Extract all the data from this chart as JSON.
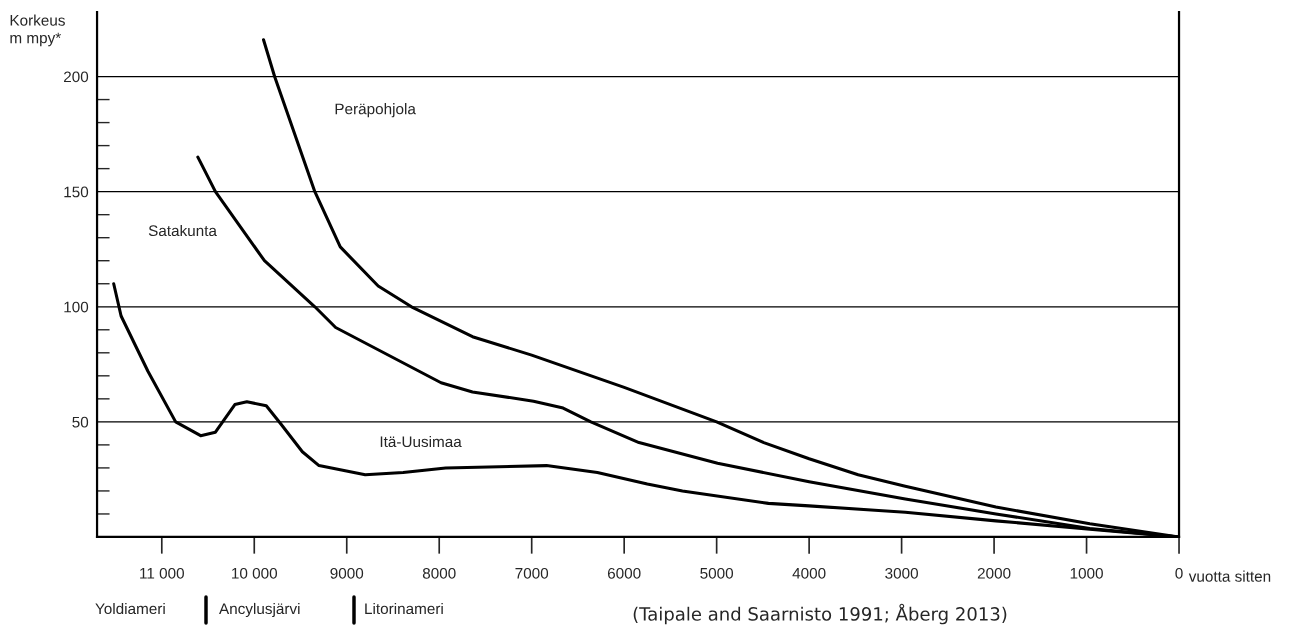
{
  "chart_data": {
    "type": "line",
    "xlabel": "vuotta sitten",
    "ylabel": "Korkeus\nm mpy*",
    "xlim": [
      11700,
      0
    ],
    "ylim": [
      0,
      228
    ],
    "xticks": [
      {
        "value": 11000,
        "label": "11 000"
      },
      {
        "value": 10000,
        "label": "10 000"
      },
      9000,
      8000,
      7000,
      6000,
      5000,
      4000,
      3000,
      2000,
      1000,
      0
    ],
    "yticks": [
      {
        "value": 10,
        "label": null
      },
      {
        "value": 20,
        "label": null
      },
      {
        "value": 30,
        "label": null
      },
      {
        "value": 40,
        "label": null
      },
      50,
      {
        "value": 60,
        "label": null
      },
      {
        "value": 70,
        "label": null
      },
      {
        "value": 80,
        "label": null
      },
      {
        "value": 90,
        "label": null
      },
      100,
      {
        "value": 110,
        "label": null
      },
      {
        "value": 120,
        "label": null
      },
      {
        "value": 130,
        "label": null
      },
      {
        "value": 140,
        "label": null
      },
      150,
      {
        "value": 160,
        "label": null
      },
      {
        "value": 170,
        "label": null
      },
      {
        "value": 180,
        "label": null
      },
      {
        "value": 190,
        "label": null
      },
      200
    ],
    "grid": "y",
    "marker": "none",
    "line_style": "solid",
    "series": [
      {
        "name": "Peräpohjola",
        "color": "#000000",
        "x": [
          9900,
          9780,
          9345,
          9070,
          8660,
          8300,
          7640,
          7000,
          6000,
          5000,
          4490,
          4000,
          3470,
          2960,
          1980,
          965,
          0
        ],
        "values": [
          216,
          200,
          150,
          126,
          109,
          100,
          87,
          79,
          65,
          50,
          41,
          34,
          27,
          22,
          13,
          5.7,
          0
        ]
      },
      {
        "name": "Satakunta",
        "color": "#000000",
        "x": [
          10610,
          10420,
          9890,
          9345,
          9120,
          7980,
          7640,
          6980,
          6660,
          6360,
          5840,
          4990,
          4000,
          2960,
          1980,
          965,
          0
        ],
        "values": [
          165,
          150,
          120,
          100,
          91,
          67,
          63,
          59,
          56,
          50,
          41,
          32,
          24,
          16.5,
          10,
          3.7,
          0
        ]
      },
      {
        "name": "Itä-Uusimaa",
        "color": "#000000",
        "x": [
          11520,
          11440,
          11150,
          10850,
          10580,
          10420,
          10210,
          10080,
          9870,
          9710,
          9480,
          9300,
          8800,
          8390,
          7930,
          6840,
          6290,
          5750,
          5370,
          4440,
          4000,
          2960,
          1980,
          965,
          0
        ],
        "values": [
          110,
          96,
          72,
          50,
          44,
          45.5,
          57.5,
          58.7,
          57,
          49,
          37,
          31,
          27,
          28,
          30,
          31,
          28,
          23,
          20,
          14.6,
          13.5,
          10.7,
          7,
          3.4,
          0
        ]
      }
    ],
    "annotations": [
      "Yoldiameri",
      "Ancylusjärvi",
      "Litorinameri",
      "(Taipale and Saarnisto 1991; Åberg 2013)"
    ]
  }
}
